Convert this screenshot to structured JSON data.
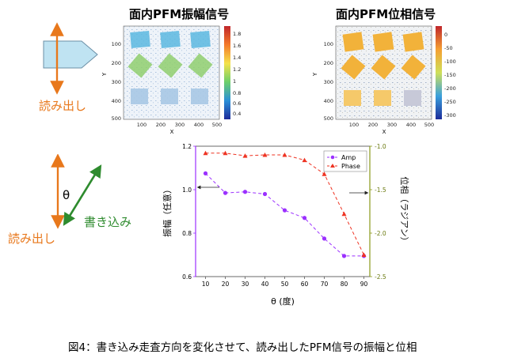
{
  "panels": {
    "amp_map": {
      "title": "面内PFM振幅信号",
      "x_ticks": [
        "100",
        "200",
        "300",
        "400",
        "500"
      ],
      "y_ticks": [
        "100",
        "200",
        "300",
        "400",
        "500"
      ],
      "x_label": "X",
      "y_label": "Y",
      "colorbar_ticks": [
        "1.8",
        "1.6",
        "1.4",
        "1.2",
        "1",
        "0.8",
        "0.6",
        "0.4"
      ]
    },
    "phase_map": {
      "title": "面内PFM位相信号",
      "x_ticks": [
        "100",
        "200",
        "300",
        "400",
        "500"
      ],
      "y_ticks": [
        "100",
        "200",
        "300",
        "400",
        "500"
      ],
      "x_label": "X",
      "y_label": "Y",
      "colorbar_ticks": [
        "0",
        "-50",
        "-100",
        "-150",
        "-200",
        "-250",
        "-300"
      ]
    }
  },
  "diagram": {
    "readout_label_top": "読み出し",
    "readout_label_bottom": "読み出し",
    "write_label": "書き込み",
    "theta_symbol": "θ",
    "readout_color": "#e8781c",
    "write_color": "#2e8b2e"
  },
  "chart_data": {
    "type": "line",
    "x": [
      10,
      20,
      30,
      40,
      50,
      60,
      70,
      80,
      90
    ],
    "xlabel": "θ (度)",
    "x_ticks": [
      "10",
      "20",
      "30",
      "40",
      "50",
      "60",
      "70",
      "80",
      "90"
    ],
    "xlim": [
      5,
      93
    ],
    "series": [
      {
        "name": "Amp",
        "axis": "left",
        "values": [
          1.075,
          0.985,
          0.99,
          0.98,
          0.905,
          0.87,
          0.775,
          0.695,
          0.695
        ],
        "color": "#9b30ff",
        "marker": "circle"
      },
      {
        "name": "Phase",
        "axis": "right",
        "values": [
          -1.08,
          -1.08,
          -1.11,
          -1.1,
          -1.1,
          -1.16,
          -1.32,
          -1.78,
          -2.25
        ],
        "color": "#ee3322",
        "marker": "triangle"
      }
    ],
    "left_axis": {
      "label": "振幅（任意）",
      "ylim": [
        0.6,
        1.2
      ],
      "ticks": [
        "0.6",
        "0.8",
        "1.0",
        "1.2"
      ],
      "tick_values": [
        0.6,
        0.8,
        1.0,
        1.2
      ],
      "color": "#9b30ff"
    },
    "right_axis": {
      "label": "位相（ラジアン）",
      "ylim": [
        -2.5,
        -1.0
      ],
      "ticks": [
        "-1.0",
        "-1.5",
        "-2.0",
        "-2.5"
      ],
      "tick_values": [
        -1.0,
        -1.5,
        -2.0,
        -2.5
      ],
      "color": "#8a9a1a"
    },
    "legend": {
      "position": "top-right",
      "entries": [
        "Amp",
        "Phase"
      ]
    }
  },
  "caption": "図4：書き込み走査方向を変化させて、読み出したPFM信号の振幅と位相"
}
